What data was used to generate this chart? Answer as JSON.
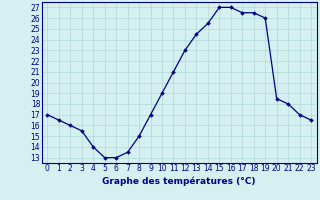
{
  "hours": [
    0,
    1,
    2,
    3,
    4,
    5,
    6,
    7,
    8,
    9,
    10,
    11,
    12,
    13,
    14,
    15,
    16,
    17,
    18,
    19,
    20,
    21,
    22,
    23
  ],
  "temperatures": [
    17,
    16.5,
    16,
    15.5,
    14,
    13,
    13,
    13.5,
    15,
    17,
    19,
    21,
    23,
    24.5,
    25.5,
    27,
    27,
    26.5,
    26.5,
    26,
    18.5,
    18,
    17,
    16.5
  ],
  "ylabel_values": [
    13,
    14,
    15,
    16,
    17,
    18,
    19,
    20,
    21,
    22,
    23,
    24,
    25,
    26,
    27
  ],
  "xlabel_values": [
    0,
    1,
    2,
    3,
    4,
    5,
    6,
    7,
    8,
    9,
    10,
    11,
    12,
    13,
    14,
    15,
    16,
    17,
    18,
    19,
    20,
    21,
    22,
    23
  ],
  "xlabel": "Graphe des températures (°C)",
  "line_color": "#00008b",
  "marker": "D",
  "marker_size": 1.8,
  "bg_color": "#d4f0f0",
  "grid_color": "#b0d8d8",
  "ylim": [
    12.5,
    27.5
  ],
  "xlim": [
    -0.5,
    23.5
  ],
  "tick_fontsize": 5.5,
  "xlabel_fontsize": 6.5
}
